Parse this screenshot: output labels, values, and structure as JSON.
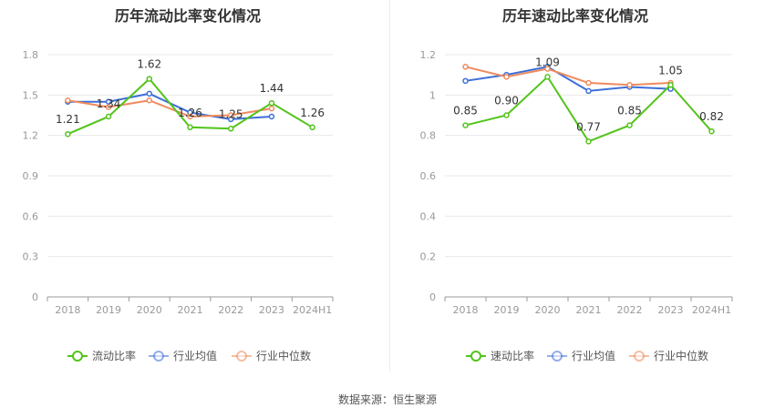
{
  "chart_data": [
    {
      "type": "line",
      "title": "历年流动比率变化情况",
      "categories": [
        "2018",
        "2019",
        "2020",
        "2021",
        "2022",
        "2023",
        "2024H1"
      ],
      "ylim": [
        0,
        1.8
      ],
      "yticks": [
        "0",
        "0.3",
        "0.6",
        "0.9",
        "1.2",
        "1.5",
        "1.8"
      ],
      "series": [
        {
          "name": "流动比率",
          "color": "#52c41a",
          "values": [
            1.21,
            1.34,
            1.62,
            1.26,
            1.25,
            1.44,
            1.26
          ],
          "labels": [
            "1.21",
            "1.34",
            "1.62",
            "1.26",
            "1.25",
            "1.44",
            "1.26"
          ]
        },
        {
          "name": "行业均值",
          "color": "#3d6fd8",
          "values": [
            1.45,
            1.45,
            1.51,
            1.37,
            1.32,
            1.34,
            null
          ]
        },
        {
          "name": "行业中位数",
          "color": "#f08a5d",
          "values": [
            1.46,
            1.41,
            1.46,
            1.34,
            1.35,
            1.4,
            null
          ]
        }
      ]
    },
    {
      "type": "line",
      "title": "历年速动比率变化情况",
      "categories": [
        "2018",
        "2019",
        "2020",
        "2021",
        "2022",
        "2023",
        "2024H1"
      ],
      "ylim": [
        0,
        1.2
      ],
      "yticks": [
        "0",
        "0.2",
        "0.4",
        "0.6",
        "0.8",
        "1",
        "1.2"
      ],
      "series": [
        {
          "name": "速动比率",
          "color": "#52c41a",
          "values": [
            0.85,
            0.9,
            1.09,
            0.77,
            0.85,
            1.05,
            0.82
          ],
          "labels": [
            "0.85",
            "0.90",
            "1.09",
            "0.77",
            "0.85",
            "1.05",
            "0.82"
          ]
        },
        {
          "name": "行业均值",
          "color": "#3d6fd8",
          "values": [
            1.07,
            1.1,
            1.14,
            1.02,
            1.04,
            1.03,
            null
          ]
        },
        {
          "name": "行业中位数",
          "color": "#f08a5d",
          "values": [
            1.14,
            1.09,
            1.13,
            1.06,
            1.05,
            1.06,
            null
          ]
        }
      ]
    }
  ],
  "footer": {
    "source": "数据来源：恒生聚源"
  }
}
